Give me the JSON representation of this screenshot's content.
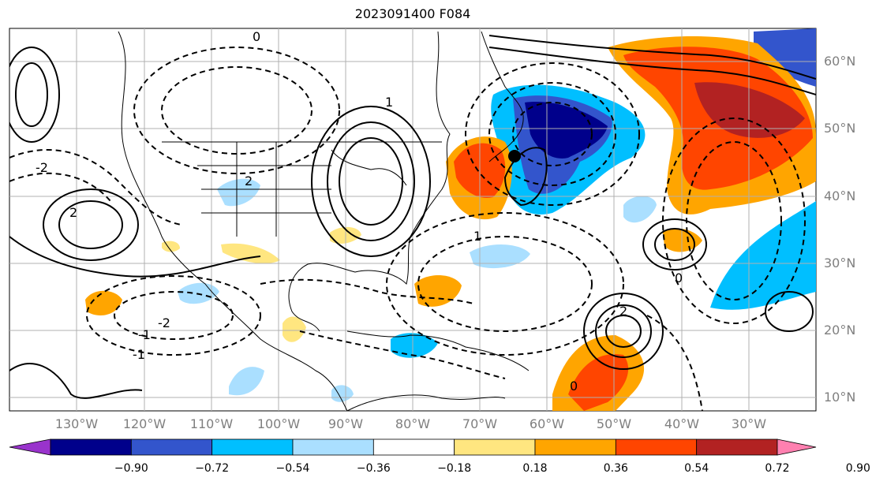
{
  "title": "2023091400 F084",
  "lon_labels": [
    "130°W",
    "120°W",
    "110°W",
    "100°W",
    "90°W",
    "80°W",
    "70°W",
    "60°W",
    "50°W",
    "40°W",
    "30°W"
  ],
  "lat_labels": [
    "60°N",
    "50°N",
    "40°N",
    "30°N",
    "20°N",
    "10°N"
  ],
  "colorbar": {
    "ticks": [
      "−0.90",
      "−0.72",
      "−0.54",
      "−0.36",
      "−0.18",
      "0.18",
      "0.36",
      "0.54",
      "0.72",
      "0.90"
    ],
    "colors": [
      "#9933cc",
      "#00008b",
      "#3355cc",
      "#00bfff",
      "#aadfff",
      "#ffffff",
      "#ffe680",
      "#ffa500",
      "#ff4500",
      "#b22222",
      "#ff80b0"
    ]
  },
  "contour_labels": [
    "0",
    "1",
    "2",
    "-1",
    "-2",
    "0",
    "1",
    "2",
    "-1",
    "-2",
    "0",
    "2"
  ],
  "colors": {
    "land_line": "#000000",
    "grid": "#b0b0b0"
  }
}
